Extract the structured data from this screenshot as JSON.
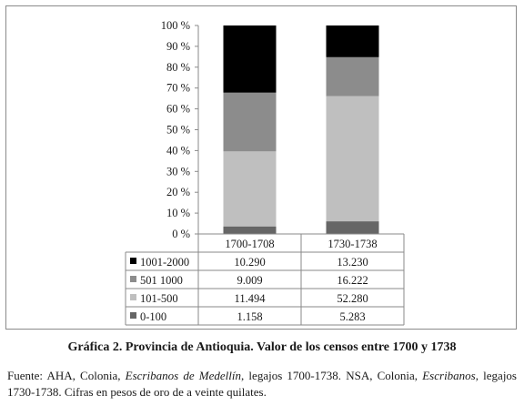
{
  "chart_data": {
    "type": "bar",
    "stacked": "percent",
    "categories": [
      "1700-1708",
      "1730-1738"
    ],
    "series": [
      {
        "name": "0-100",
        "values": [
          1.158,
          5.283
        ],
        "color": "#666666"
      },
      {
        "name": "101-500",
        "values": [
          11.494,
          52.28
        ],
        "color": "#bfbfbf"
      },
      {
        "name": "501 1000",
        "values": [
          9.009,
          16.222
        ],
        "color": "#8c8c8c"
      },
      {
        "name": "1001-2000",
        "values": [
          10.29,
          13.23
        ],
        "color": "#000000"
      }
    ],
    "table_rows": [
      {
        "label": "1001-2000",
        "values": [
          "10.290",
          "13.230"
        ]
      },
      {
        "label": "501 1000",
        "values": [
          "9.009",
          "16.222"
        ]
      },
      {
        "label": "101-500",
        "values": [
          "11.494",
          "52.280"
        ]
      },
      {
        "label": "0-100",
        "values": [
          "1.158",
          "5.283"
        ]
      }
    ],
    "y_ticks": [
      "0 %",
      "10 %",
      "20 %",
      "30 %",
      "40 %",
      "50 %",
      "60 %",
      "70 %",
      "80 %",
      "90 %",
      "100 %"
    ],
    "ylim": [
      0,
      100
    ],
    "grid": false,
    "legend": "data-table"
  },
  "caption": "Gráfica 2. Provincia de Antioquia. Valor de los censos entre 1700 y 1738",
  "source": {
    "p1": "Fuente: AHA, Colonia, ",
    "i1": "Escribanos de Medellín",
    "p2": ", legajos 1700-1738. NSA, Colonia, ",
    "i2": "Escribanos",
    "p3": ", legajos 1730-1738. Cifras en pesos de oro de a veinte quilates."
  }
}
